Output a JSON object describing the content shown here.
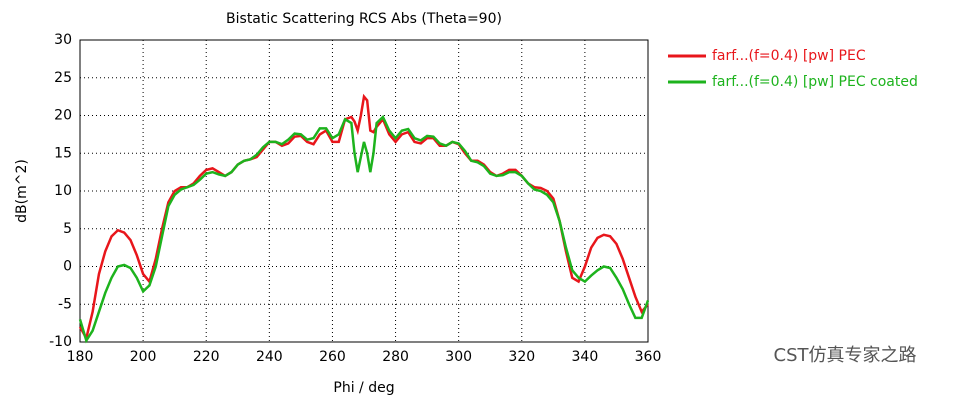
{
  "chart_data": {
    "type": "line",
    "title": "Bistatic Scattering RCS Abs (Theta=90)",
    "xlabel": "Phi / deg",
    "ylabel": "dB(m^2)",
    "watermark": "CST仿真专家之路",
    "xlim": [
      180,
      360
    ],
    "ylim": [
      -10,
      30
    ],
    "xticks": [
      180,
      200,
      220,
      240,
      260,
      280,
      300,
      320,
      340,
      360
    ],
    "yticks": [
      -10,
      -5,
      0,
      5,
      10,
      15,
      20,
      25,
      30
    ],
    "grid": true,
    "legend": "right",
    "x": [
      180,
      182,
      184,
      186,
      188,
      190,
      192,
      194,
      196,
      198,
      200,
      202,
      204,
      206,
      208,
      210,
      212,
      214,
      216,
      218,
      220,
      222,
      224,
      226,
      228,
      230,
      232,
      234,
      236,
      238,
      240,
      242,
      244,
      246,
      248,
      250,
      252,
      254,
      256,
      258,
      260,
      262,
      264,
      266,
      267,
      268,
      269,
      270,
      271,
      272,
      273,
      274,
      276,
      278,
      280,
      282,
      284,
      286,
      288,
      290,
      292,
      294,
      296,
      298,
      300,
      302,
      304,
      306,
      308,
      310,
      312,
      314,
      316,
      318,
      320,
      322,
      324,
      326,
      328,
      330,
      332,
      334,
      336,
      338,
      340,
      342,
      344,
      346,
      348,
      350,
      352,
      354,
      356,
      358,
      360
    ],
    "series": [
      {
        "name": "farf...(f=0.4) [pw] PEC",
        "color": "#e8161b",
        "values": [
          -8,
          -9.5,
          -6,
          -1,
          2,
          4,
          4.8,
          4.5,
          3.5,
          1.5,
          -1,
          -2,
          1,
          5,
          8.5,
          10,
          10.5,
          10.5,
          11,
          12,
          12.8,
          13,
          12.5,
          12,
          12.5,
          13.5,
          14,
          14.2,
          14.5,
          15.5,
          16.5,
          16.5,
          16,
          16.3,
          17.2,
          17.3,
          16.5,
          16.2,
          17.5,
          18,
          16.5,
          16.5,
          19.5,
          19.8,
          19.2,
          18,
          20,
          22.5,
          22,
          18,
          17.8,
          18.5,
          19.5,
          17.5,
          16.5,
          17.5,
          17.8,
          16.5,
          16.3,
          17,
          17,
          16,
          16,
          16.5,
          16.2,
          15,
          14,
          14,
          13.5,
          12.5,
          12,
          12.3,
          12.8,
          12.8,
          12,
          11,
          10.5,
          10.4,
          10,
          9,
          6,
          2,
          -1.5,
          -2,
          0,
          2.5,
          3.8,
          4.2,
          4,
          3,
          1,
          -1.5,
          -4,
          -6,
          -5
        ]
      },
      {
        "name": "farf...(f=0.4) [pw] PEC coated",
        "color": "#1db31d",
        "values": [
          -7,
          -9.8,
          -8.5,
          -6,
          -3.5,
          -1.5,
          0,
          0.2,
          -0.2,
          -1.5,
          -3.3,
          -2.5,
          0,
          4,
          8,
          9.5,
          10.2,
          10.5,
          10.8,
          11.5,
          12.3,
          12.5,
          12.2,
          12,
          12.5,
          13.5,
          14,
          14.2,
          14.8,
          15.8,
          16.5,
          16.5,
          16.2,
          16.8,
          17.6,
          17.5,
          16.8,
          17,
          18.3,
          18.3,
          17,
          17.5,
          19.5,
          19,
          15,
          12.5,
          14.5,
          16.5,
          15,
          12.5,
          15,
          19,
          19.8,
          18,
          17,
          18,
          18.2,
          17,
          16.7,
          17.3,
          17.2,
          16.3,
          16,
          16.5,
          16.3,
          15.3,
          14,
          13.8,
          13.3,
          12.3,
          12,
          12.1,
          12.5,
          12.5,
          12,
          11,
          10.2,
          10,
          9.5,
          8.5,
          6,
          2.5,
          -0.5,
          -1.5,
          -2,
          -1.2,
          -0.5,
          0,
          -0.2,
          -1.5,
          -3,
          -5,
          -6.8,
          -6.8,
          -4.5
        ]
      }
    ]
  }
}
